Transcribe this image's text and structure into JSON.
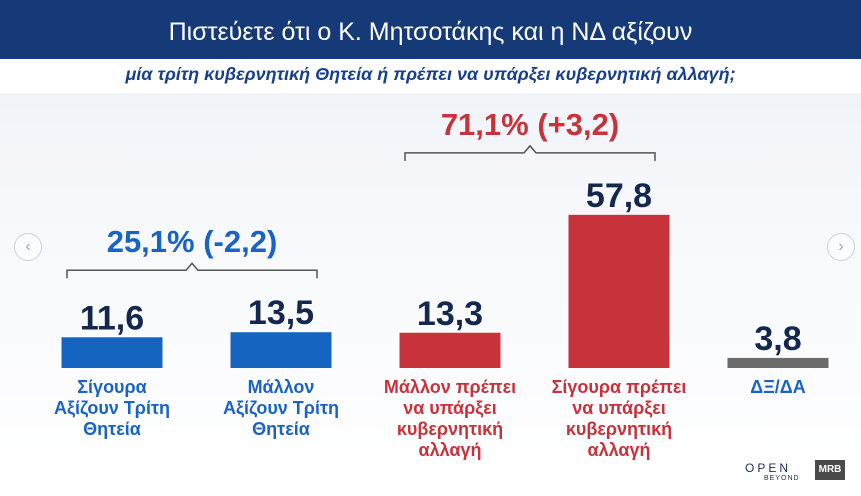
{
  "header": {
    "title": "Πιστεύετε ότι ο Κ. Μητσοτάκης και η ΝΔ αξίζουν",
    "subtitle": "μία τρίτη κυβερνητική Θητεία ή πρέπει να υπάρξει κυβερνητική αλλαγή;"
  },
  "nav": {
    "prev_icon": "‹",
    "next_icon": "›"
  },
  "logos": {
    "open": "OPEN",
    "open_sub": "BEYOND",
    "mrb": "MRB"
  },
  "colors": {
    "blue": "#1565c0",
    "red": "#c8333b",
    "gray": "#6b6b6b",
    "header": "#163a78",
    "label_blue": "#1a63c6",
    "label_red": "#c8333b"
  },
  "chart_data": {
    "type": "bar",
    "categories": [
      "Σίγουρα Αξίζουν Τρίτη Θητεία",
      "Μάλλον Αξίζουν Τρίτη Θητεία",
      "Μάλλον πρέπει να υπάρξει κυβερνητική αλλαγή",
      "Σίγουρα πρέπει να υπάρξει κυβερνητική αλλαγή",
      "ΔΞ/ΔΑ"
    ],
    "category_lines": [
      [
        "Σίγουρα",
        "Αξίζουν Τρίτη",
        "Θητεία"
      ],
      [
        "Μάλλον",
        "Αξίζουν Τρίτη",
        "Θητεία"
      ],
      [
        "Μάλλον πρέπει",
        "να υπάρξει",
        "κυβερνητική",
        "αλλαγή"
      ],
      [
        "Σίγουρα πρέπει",
        "να υπάρξει",
        "κυβερνητική",
        "αλλαγή"
      ],
      [
        "ΔΞ/ΔΑ"
      ]
    ],
    "values": [
      11.6,
      13.5,
      13.3,
      57.8,
      3.8
    ],
    "value_labels": [
      "11,6",
      "13,5",
      "13,3",
      "57,8",
      "3,8"
    ],
    "bar_colors": [
      "#1565c0",
      "#1565c0",
      "#c8333b",
      "#c8333b",
      "#6b6b6b"
    ],
    "label_colors": [
      "#1a63c6",
      "#1a63c6",
      "#c8333b",
      "#c8333b",
      "#1a63c6"
    ],
    "groups": [
      {
        "label": "25,1% (-2,2)",
        "categories": [
          0,
          1
        ],
        "color": "#1a63c6",
        "total": 25.1,
        "change": -2.2
      },
      {
        "label": "71,1% (+3,2)",
        "categories": [
          2,
          3
        ],
        "color": "#c8333b",
        "total": 71.1,
        "change": 3.2
      }
    ]
  }
}
